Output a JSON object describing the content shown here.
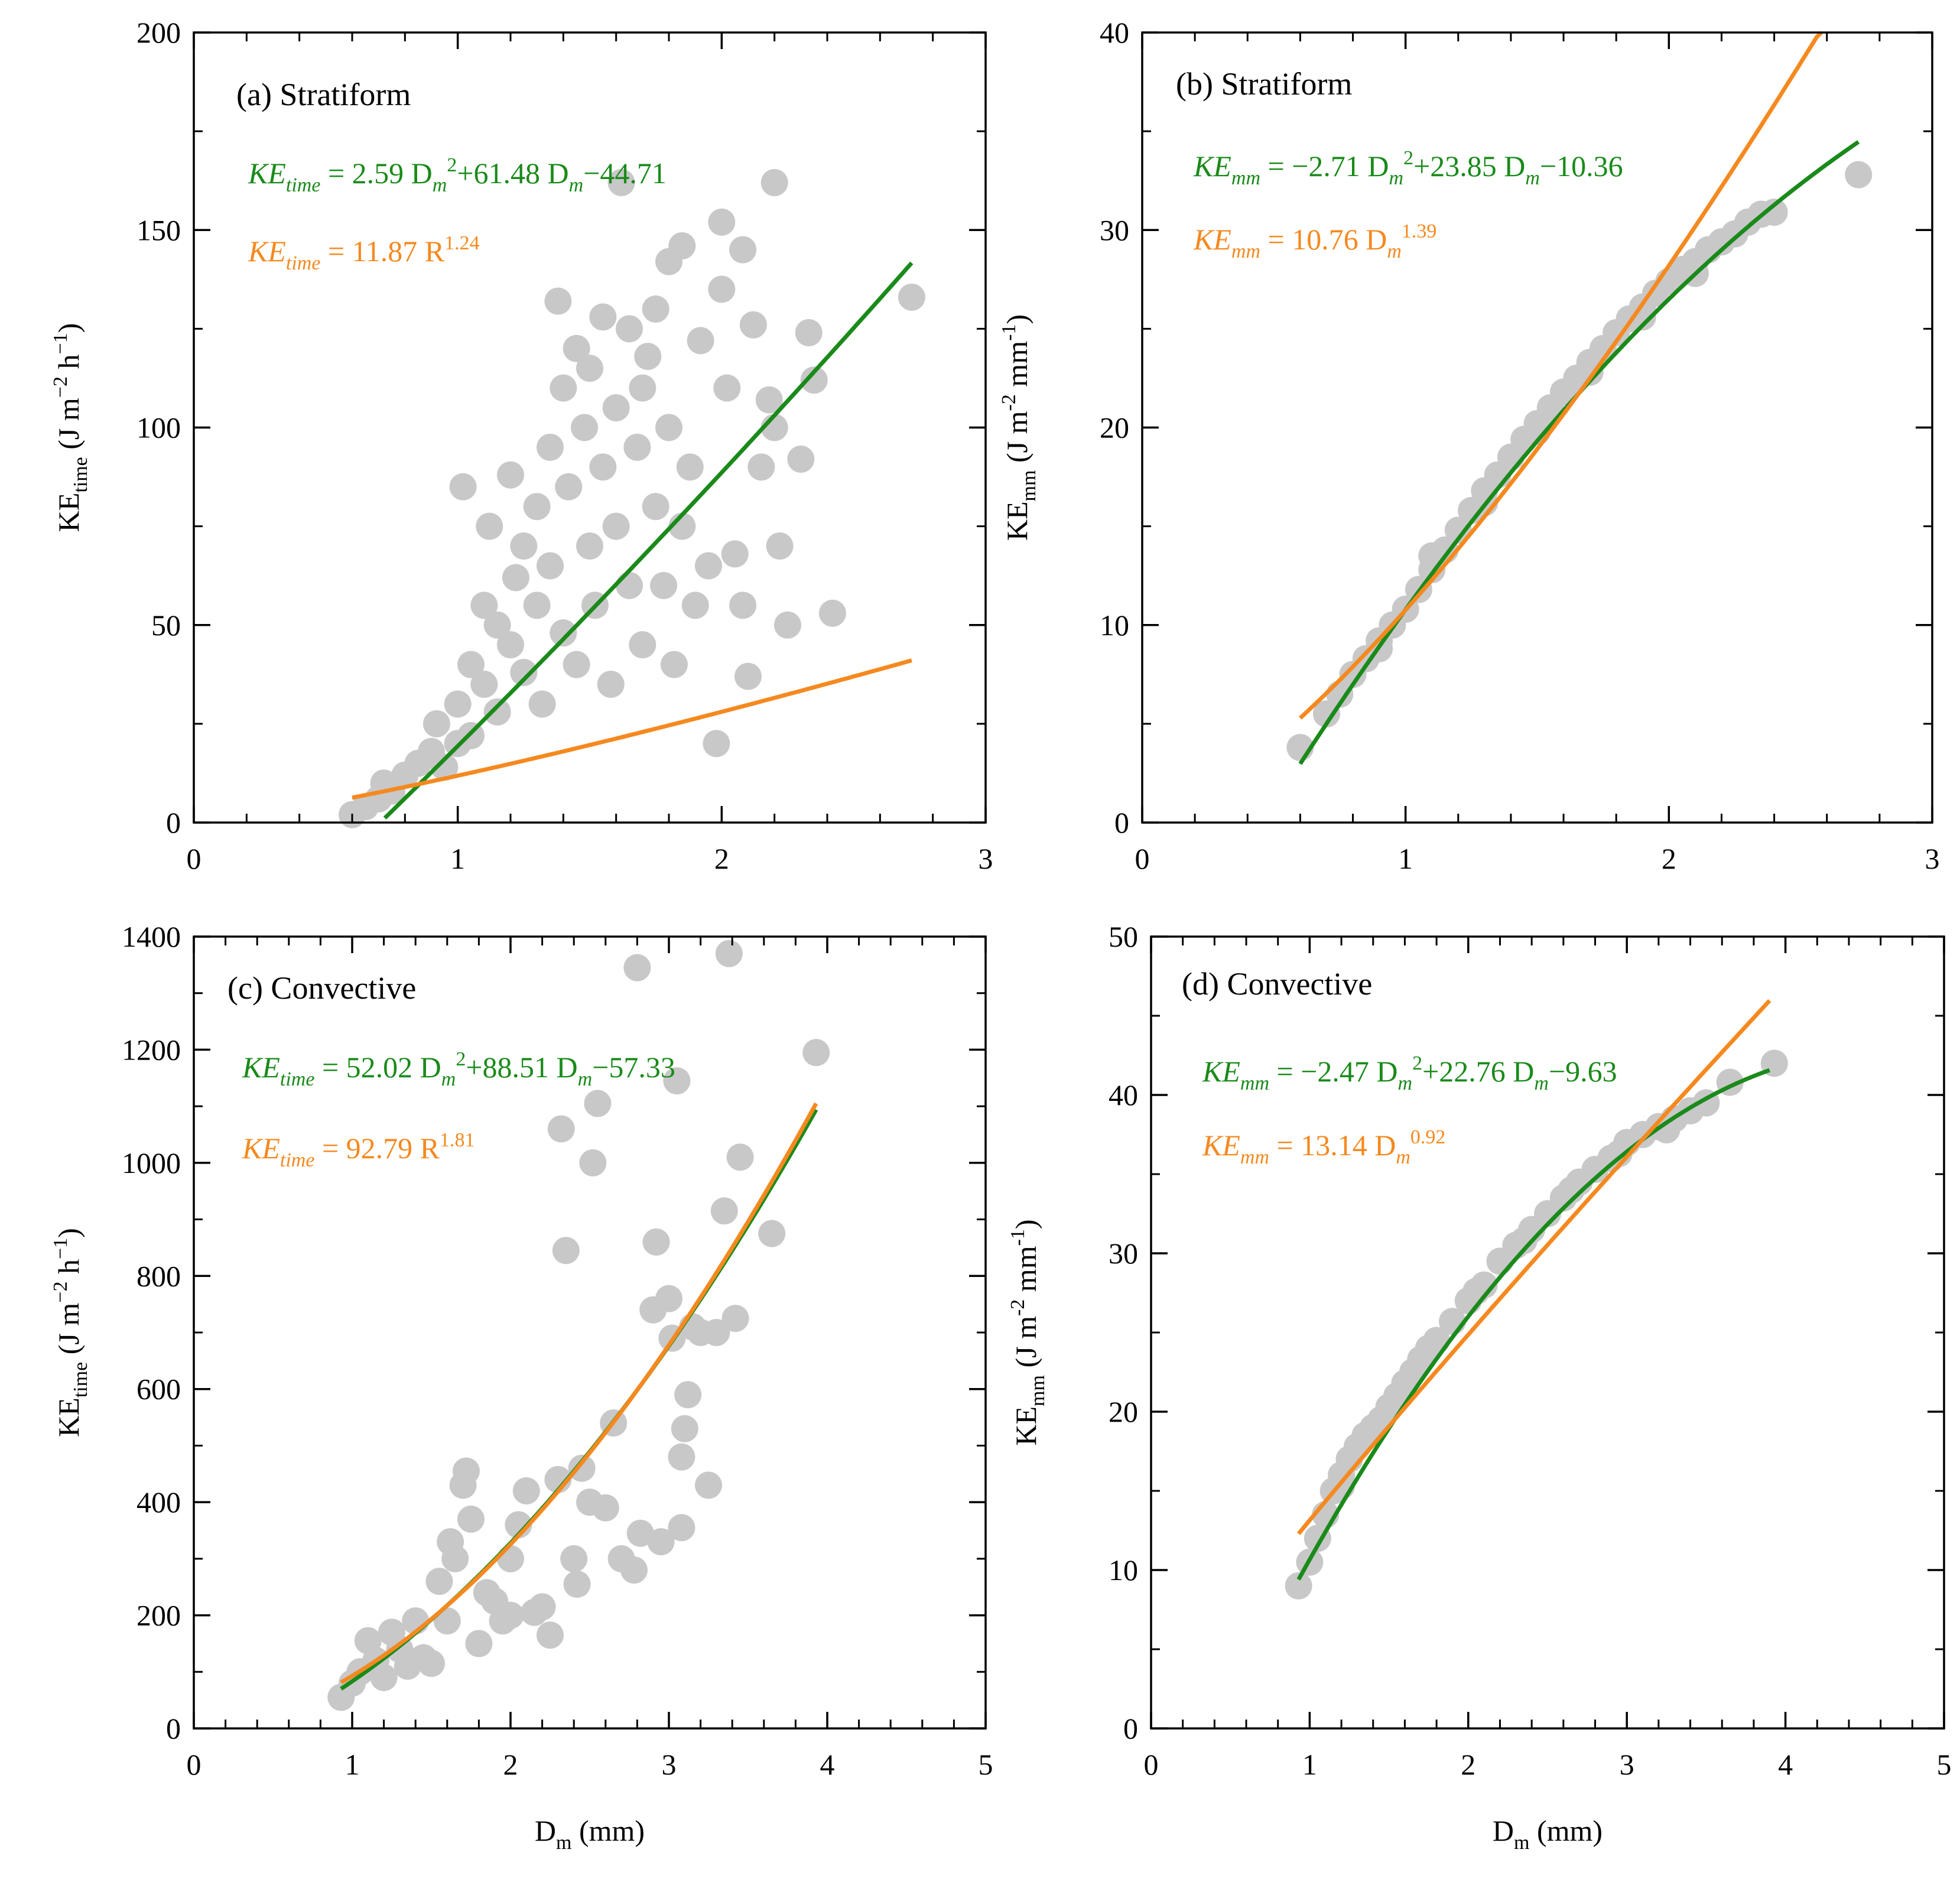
{
  "figure": {
    "colors": {
      "points": "#c8c8c8",
      "poly_fit": "#1a8a1a",
      "power_fit": "#f5891f",
      "axis": "#000000"
    },
    "axis_title_x": {
      "main": "D",
      "sub": "m",
      "unit": " (mm)"
    }
  },
  "chart_data": [
    {
      "id": "a",
      "type": "scatter",
      "label": "(a) Stratiform",
      "xlabel": "D<sub>m</sub> (mm)",
      "ylabel": {
        "main": "KE",
        "sub": "time",
        "unit": " (J m",
        "sup1": "−2",
        "mid": " h",
        "sup2": "−1",
        "end": ")"
      },
      "xlim": [
        0,
        3
      ],
      "ylim": [
        0,
        200
      ],
      "xticks": [
        0,
        1,
        2,
        3
      ],
      "yticks": [
        0,
        50,
        100,
        150,
        200
      ],
      "point_color": "#c8c8c8",
      "points": [
        [
          0.6,
          2
        ],
        [
          0.65,
          4
        ],
        [
          0.7,
          6
        ],
        [
          0.72,
          10
        ],
        [
          0.75,
          8
        ],
        [
          0.8,
          12
        ],
        [
          0.85,
          15
        ],
        [
          0.9,
          18
        ],
        [
          0.92,
          25
        ],
        [
          0.95,
          14
        ],
        [
          1.0,
          20
        ],
        [
          1.0,
          30
        ],
        [
          1.02,
          85
        ],
        [
          1.05,
          40
        ],
        [
          1.05,
          22
        ],
        [
          1.1,
          35
        ],
        [
          1.1,
          55
        ],
        [
          1.12,
          75
        ],
        [
          1.15,
          50
        ],
        [
          1.15,
          28
        ],
        [
          1.2,
          45
        ],
        [
          1.2,
          88
        ],
        [
          1.22,
          62
        ],
        [
          1.25,
          38
        ],
        [
          1.25,
          70
        ],
        [
          1.3,
          55
        ],
        [
          1.3,
          80
        ],
        [
          1.32,
          30
        ],
        [
          1.35,
          95
        ],
        [
          1.35,
          65
        ],
        [
          1.38,
          132
        ],
        [
          1.4,
          48
        ],
        [
          1.4,
          110
        ],
        [
          1.42,
          85
        ],
        [
          1.45,
          120
        ],
        [
          1.45,
          40
        ],
        [
          1.48,
          100
        ],
        [
          1.5,
          70
        ],
        [
          1.5,
          115
        ],
        [
          1.52,
          55
        ],
        [
          1.55,
          90
        ],
        [
          1.55,
          128
        ],
        [
          1.58,
          35
        ],
        [
          1.6,
          105
        ],
        [
          1.6,
          75
        ],
        [
          1.62,
          162
        ],
        [
          1.65,
          60
        ],
        [
          1.65,
          125
        ],
        [
          1.68,
          95
        ],
        [
          1.7,
          45
        ],
        [
          1.7,
          110
        ],
        [
          1.72,
          118
        ],
        [
          1.75,
          80
        ],
        [
          1.75,
          130
        ],
        [
          1.78,
          60
        ],
        [
          1.8,
          142
        ],
        [
          1.8,
          100
        ],
        [
          1.82,
          40
        ],
        [
          1.85,
          146
        ],
        [
          1.85,
          75
        ],
        [
          1.88,
          90
        ],
        [
          1.9,
          55
        ],
        [
          1.92,
          122
        ],
        [
          1.95,
          65
        ],
        [
          1.98,
          20
        ],
        [
          2.0,
          152
        ],
        [
          2.0,
          135
        ],
        [
          2.02,
          110
        ],
        [
          2.05,
          68
        ],
        [
          2.08,
          145
        ],
        [
          2.08,
          55
        ],
        [
          2.1,
          37
        ],
        [
          2.12,
          126
        ],
        [
          2.15,
          90
        ],
        [
          2.18,
          107
        ],
        [
          2.2,
          162
        ],
        [
          2.2,
          100
        ],
        [
          2.22,
          70
        ],
        [
          2.25,
          50
        ],
        [
          2.3,
          92
        ],
        [
          2.33,
          124
        ],
        [
          2.35,
          112
        ],
        [
          2.42,
          53
        ],
        [
          2.72,
          133
        ]
      ],
      "fits": [
        {
          "kind": "poly",
          "color": "#1a8a1a",
          "a": 2.59,
          "b": 61.48,
          "c": -44.71,
          "x_range": [
            0.6,
            2.72
          ],
          "eq": {
            "lhs": "KE",
            "lhs_sub": "time",
            "rhs": " = 2.59 D",
            "sq_sub": "m",
            "sq_sup": "2",
            "rhs2": "+61.48 D",
            "lin_sub": "m",
            "rhs3": "−44.71"
          }
        },
        {
          "kind": "power",
          "color": "#f5891f",
          "a": 11.87,
          "b": 1.24,
          "x_range": [
            0.6,
            2.72
          ],
          "eq": {
            "lhs": "KE",
            "lhs_sub": "time",
            "rhs": " = 11.87 R",
            "sup": "1.24"
          }
        }
      ]
    },
    {
      "id": "b",
      "type": "scatter",
      "label": "(b) Stratiform",
      "ylabel": {
        "main": "KE",
        "sub": "mm",
        "unit": " (J m",
        "sup1": "-2",
        "mid": " mm",
        "sup2": "-1",
        "end": ")"
      },
      "xlim": [
        0,
        3
      ],
      "ylim": [
        0,
        40
      ],
      "xticks": [
        0,
        1,
        2,
        3
      ],
      "yticks": [
        0,
        10,
        20,
        30,
        40
      ],
      "point_color": "#c8c8c8",
      "points": [
        [
          0.6,
          3.8
        ],
        [
          0.7,
          5.5
        ],
        [
          0.75,
          6.5
        ],
        [
          0.8,
          7.5
        ],
        [
          0.85,
          8.3
        ],
        [
          0.9,
          9.2
        ],
        [
          0.95,
          10
        ],
        [
          1.0,
          10.8
        ],
        [
          1.05,
          11.8
        ],
        [
          1.1,
          12.8
        ],
        [
          1.15,
          13.8
        ],
        [
          1.2,
          14.8
        ],
        [
          1.25,
          15.8
        ],
        [
          1.3,
          16.8
        ],
        [
          1.35,
          17.6
        ],
        [
          1.4,
          18.5
        ],
        [
          1.45,
          19.4
        ],
        [
          1.5,
          20.2
        ],
        [
          1.55,
          21
        ],
        [
          1.6,
          21.8
        ],
        [
          1.65,
          22.5
        ],
        [
          1.7,
          23.3
        ],
        [
          1.75,
          24
        ],
        [
          1.8,
          24.8
        ],
        [
          1.85,
          25.5
        ],
        [
          1.9,
          26.1
        ],
        [
          1.95,
          26.8
        ],
        [
          2.0,
          27.4
        ],
        [
          2.05,
          28
        ],
        [
          2.1,
          28.4
        ],
        [
          2.15,
          29
        ],
        [
          2.2,
          29.4
        ],
        [
          2.25,
          29.8
        ],
        [
          2.3,
          30.4
        ],
        [
          2.35,
          30.8
        ],
        [
          2.4,
          30.9
        ],
        [
          2.72,
          32.8
        ],
        [
          0.9,
          8.8
        ],
        [
          1.1,
          13.5
        ],
        [
          1.3,
          16.2
        ],
        [
          1.5,
          19.8
        ],
        [
          1.7,
          22.8
        ],
        [
          1.9,
          25.6
        ],
        [
          2.1,
          27.8
        ]
      ],
      "fits": [
        {
          "kind": "poly",
          "color": "#1a8a1a",
          "a": -2.71,
          "b": 23.85,
          "c": -10.36,
          "x_range": [
            0.6,
            2.72
          ],
          "eq": {
            "lhs": "KE",
            "lhs_sub": "mm",
            "rhs": " = −2.71 D",
            "sq_sub": "m",
            "sq_sup": "2",
            "rhs2": "+23.85 D",
            "lin_sub": "m",
            "rhs3": "−10.36"
          }
        },
        {
          "kind": "power",
          "color": "#f5891f",
          "a": 10.76,
          "b": 1.39,
          "x_range": [
            0.6,
            2.72
          ],
          "eq": {
            "lhs": "KE",
            "lhs_sub": "mm",
            "rhs": " = 10.76 D",
            "pow_sub": "m",
            "sup": "1.39"
          }
        }
      ]
    },
    {
      "id": "c",
      "type": "scatter",
      "label": "(c) Convective",
      "ylabel": {
        "main": "KE",
        "sub": "time",
        "unit": " (J m",
        "sup1": "−2",
        "mid": " h",
        "sup2": "−1",
        "end": ")"
      },
      "xlim": [
        0,
        5
      ],
      "ylim": [
        0,
        1400
      ],
      "xticks": [
        0,
        1,
        2,
        3,
        4,
        5
      ],
      "yticks": [
        0,
        200,
        400,
        600,
        800,
        1000,
        1200,
        1400
      ],
      "point_color": "#c8c8c8",
      "points": [
        [
          0.93,
          55
        ],
        [
          1.0,
          80
        ],
        [
          1.05,
          100
        ],
        [
          1.1,
          155
        ],
        [
          1.15,
          120
        ],
        [
          1.2,
          90
        ],
        [
          1.25,
          170
        ],
        [
          1.3,
          140
        ],
        [
          1.35,
          110
        ],
        [
          1.4,
          190
        ],
        [
          1.45,
          125
        ],
        [
          1.5,
          115
        ],
        [
          1.55,
          260
        ],
        [
          1.6,
          190
        ],
        [
          1.62,
          330
        ],
        [
          1.65,
          300
        ],
        [
          1.7,
          430
        ],
        [
          1.72,
          455
        ],
        [
          1.75,
          370
        ],
        [
          1.8,
          150
        ],
        [
          1.85,
          240
        ],
        [
          1.9,
          225
        ],
        [
          1.95,
          190
        ],
        [
          2.0,
          200
        ],
        [
          2.0,
          300
        ],
        [
          2.05,
          360
        ],
        [
          2.1,
          420
        ],
        [
          2.15,
          205
        ],
        [
          2.2,
          215
        ],
        [
          2.25,
          165
        ],
        [
          2.3,
          440
        ],
        [
          2.32,
          1060
        ],
        [
          2.35,
          845
        ],
        [
          2.4,
          300
        ],
        [
          2.42,
          255
        ],
        [
          2.45,
          460
        ],
        [
          2.5,
          400
        ],
        [
          2.52,
          1000
        ],
        [
          2.55,
          1105
        ],
        [
          2.6,
          390
        ],
        [
          2.65,
          540
        ],
        [
          2.7,
          300
        ],
        [
          2.78,
          280
        ],
        [
          2.8,
          1345
        ],
        [
          2.82,
          345
        ],
        [
          2.9,
          740
        ],
        [
          2.92,
          860
        ],
        [
          2.95,
          330
        ],
        [
          3.0,
          760
        ],
        [
          3.02,
          690
        ],
        [
          3.05,
          1145
        ],
        [
          3.08,
          480
        ],
        [
          3.1,
          530
        ],
        [
          3.12,
          590
        ],
        [
          3.15,
          710
        ],
        [
          3.2,
          700
        ],
        [
          3.25,
          430
        ],
        [
          3.3,
          700
        ],
        [
          3.35,
          915
        ],
        [
          3.38,
          1370
        ],
        [
          3.42,
          725
        ],
        [
          3.45,
          1010
        ],
        [
          3.65,
          875
        ],
        [
          3.93,
          1195
        ],
        [
          3.08,
          355
        ]
      ],
      "fits": [
        {
          "kind": "poly",
          "color": "#1a8a1a",
          "a": 52.02,
          "b": 88.51,
          "c": -57.33,
          "x_range": [
            0.93,
            3.93
          ],
          "eq": {
            "lhs": "KE",
            "lhs_sub": "time",
            "rhs": " = 52.02 D",
            "sq_sub": "m",
            "sq_sup": "2",
            "rhs2": "+88.51 D",
            "lin_sub": "m",
            "rhs3": "−57.33"
          }
        },
        {
          "kind": "power",
          "color": "#f5891f",
          "a": 92.79,
          "b": 1.81,
          "x_range": [
            0.93,
            3.93
          ],
          "eq": {
            "lhs": "KE",
            "lhs_sub": "time",
            "rhs": " = 92.79 R",
            "sup": "1.81"
          }
        }
      ]
    },
    {
      "id": "d",
      "type": "scatter",
      "label": "(d) Convective",
      "ylabel": {
        "main": "KE",
        "sub": "mm",
        "unit": " (J m",
        "sup1": "-2",
        "mid": " mm",
        "sup2": "-1",
        "end": ")"
      },
      "xlim": [
        0,
        5
      ],
      "ylim": [
        0,
        50
      ],
      "xticks": [
        0,
        1,
        2,
        3,
        4,
        5
      ],
      "yticks": [
        0,
        10,
        20,
        30,
        40,
        50
      ],
      "point_color": "#c8c8c8",
      "points": [
        [
          0.93,
          9
        ],
        [
          1.0,
          10.5
        ],
        [
          1.05,
          12
        ],
        [
          1.1,
          13.5
        ],
        [
          1.15,
          15
        ],
        [
          1.2,
          16
        ],
        [
          1.25,
          17
        ],
        [
          1.3,
          17.8
        ],
        [
          1.35,
          18.5
        ],
        [
          1.4,
          19
        ],
        [
          1.5,
          20.3
        ],
        [
          1.55,
          21
        ],
        [
          1.6,
          21.8
        ],
        [
          1.65,
          22.5
        ],
        [
          1.7,
          23.3
        ],
        [
          1.8,
          24.5
        ],
        [
          1.9,
          25.7
        ],
        [
          2.0,
          27
        ],
        [
          2.1,
          28
        ],
        [
          2.2,
          29.5
        ],
        [
          2.3,
          30.5
        ],
        [
          2.4,
          31.5
        ],
        [
          2.5,
          32.5
        ],
        [
          2.6,
          33.5
        ],
        [
          2.7,
          34.5
        ],
        [
          2.8,
          35.3
        ],
        [
          2.9,
          36
        ],
        [
          3.0,
          37
        ],
        [
          3.1,
          37.5
        ],
        [
          3.2,
          38
        ],
        [
          3.3,
          38.5
        ],
        [
          3.4,
          39
        ],
        [
          3.5,
          39.5
        ],
        [
          3.65,
          40.8
        ],
        [
          3.93,
          42
        ],
        [
          1.2,
          15.3
        ],
        [
          1.45,
          19.5
        ],
        [
          1.75,
          24
        ],
        [
          2.05,
          27.6
        ],
        [
          2.35,
          30.8
        ],
        [
          2.65,
          34
        ],
        [
          2.95,
          36.3
        ],
        [
          3.25,
          37.8
        ]
      ],
      "fits": [
        {
          "kind": "poly",
          "color": "#1a8a1a",
          "a": -2.47,
          "b": 22.76,
          "c": -9.63,
          "x_range": [
            0.93,
            3.9
          ],
          "eq": {
            "lhs": "KE",
            "lhs_sub": "mm",
            "rhs": " = −2.47 D",
            "sq_sub": "m",
            "sq_sup": "2",
            "rhs2": "+22.76 D",
            "lin_sub": "m",
            "rhs3": "−9.63"
          }
        },
        {
          "kind": "power",
          "color": "#f5891f",
          "a": 13.14,
          "b": 0.92,
          "x_range": [
            0.93,
            3.9
          ],
          "eq": {
            "lhs": "KE",
            "lhs_sub": "mm",
            "rhs": " = 13.14 D",
            "pow_sub": "m",
            "sup": "0.92"
          }
        }
      ]
    }
  ]
}
